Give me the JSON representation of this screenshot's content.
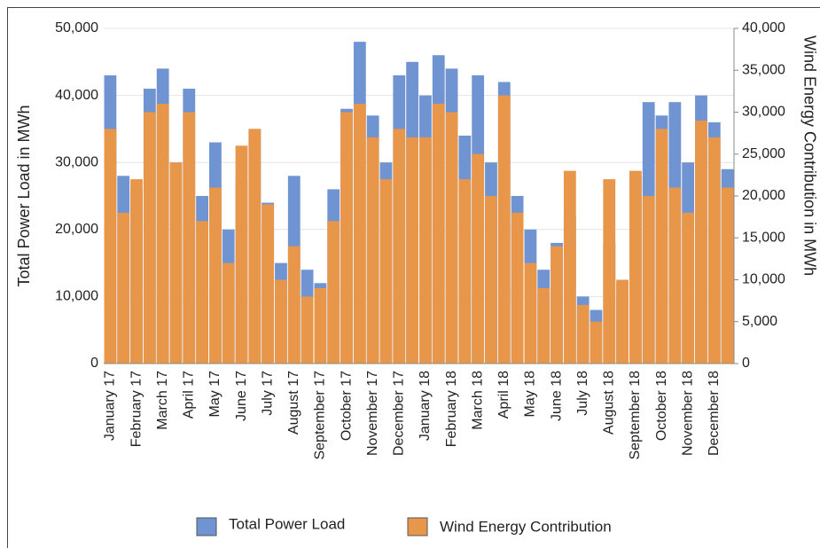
{
  "chart_data": {
    "type": "bar",
    "y_title": "Total Power Load in MWh",
    "y2_title": "Wind Energy Contribution in MWh",
    "categories": [
      "January 17",
      null,
      "February 17",
      null,
      "March 17",
      null,
      "April 17",
      null,
      "May 17",
      null,
      "June 17",
      null,
      "July 17",
      null,
      "August 17",
      null,
      "September 17",
      null,
      "October 17",
      null,
      "November 17",
      null,
      "December 17",
      null,
      "January 18",
      null,
      "February 18",
      null,
      "March 18",
      null,
      "April 18",
      null,
      "May 18",
      null,
      "June 18",
      null,
      "July 18",
      null,
      "August 18",
      null,
      "September 18",
      null,
      "October 18",
      null,
      "November 18",
      null,
      "December 18",
      null
    ],
    "series": [
      {
        "name": "Total Power Load",
        "color": "#7093d1",
        "values": [
          43000,
          28000,
          26000,
          41000,
          44000,
          30000,
          41000,
          25000,
          33000,
          20000,
          27000,
          35000,
          24000,
          15000,
          28000,
          14000,
          12000,
          26000,
          38000,
          48000,
          37000,
          30000,
          43000,
          45000,
          40000,
          46000,
          44000,
          34000,
          43000,
          30000,
          42000,
          25000,
          20000,
          14000,
          18000,
          22000,
          10000,
          8000,
          18000,
          12000,
          28000,
          39000,
          37000,
          39000,
          30000,
          40000,
          36000,
          29000
        ]
      },
      {
        "name": "Wind Energy Contribution",
        "color": "#e8974a",
        "axis": "y2",
        "values": [
          28000,
          18000,
          22000,
          30000,
          31000,
          24000,
          30000,
          17000,
          21000,
          12000,
          26000,
          28000,
          19000,
          10000,
          14000,
          8000,
          9000,
          17000,
          30000,
          31000,
          27000,
          22000,
          28000,
          27000,
          27000,
          31000,
          30000,
          22000,
          25000,
          20000,
          32000,
          18000,
          12000,
          9000,
          14000,
          23000,
          7000,
          5000,
          22000,
          10000,
          23000,
          20000,
          28000,
          21000,
          18000,
          29000,
          27000,
          21000
        ]
      }
    ],
    "ylim": [
      0,
      50000
    ],
    "yticks": [
      0,
      {
        "value": 10000,
        "label": "10,000"
      },
      {
        "value": 20000,
        "label": "20,000"
      },
      {
        "value": 30000,
        "label": "30,000"
      },
      {
        "value": 40000,
        "label": "40,000"
      },
      {
        "value": 50000,
        "label": "50,000"
      }
    ],
    "y2lim": [
      0,
      40000
    ],
    "y2ticks": [
      0,
      {
        "value": 5000,
        "label": "5,000"
      },
      {
        "value": 10000,
        "label": "10,000"
      },
      {
        "value": 15000,
        "label": "15,000"
      },
      {
        "value": 20000,
        "label": "20,000"
      },
      {
        "value": 25000,
        "label": "25,000"
      },
      {
        "value": 30000,
        "label": "30,000"
      },
      {
        "value": 35000,
        "label": "35,000"
      },
      {
        "value": 40000,
        "label": "40,000"
      }
    ],
    "grid": true
  }
}
